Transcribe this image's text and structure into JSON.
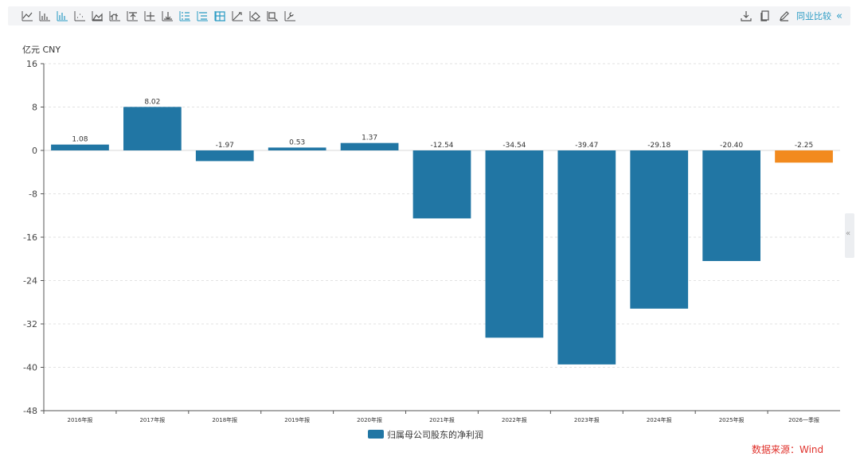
{
  "toolbar": {
    "left_icons": [
      "line-chart-icon",
      "bar-chart-icon",
      "grouped-bar-icon",
      "scatter-icon",
      "area-chart-icon",
      "bar-line-icon",
      "align-top-icon",
      "align-middle-icon",
      "align-bottom-icon",
      "list-icon",
      "list-indent-icon",
      "table-icon",
      "trend-line-icon",
      "fill-bucket-icon",
      "zoom-icon",
      "wrench-icon"
    ],
    "right_icons": [
      "download-icon",
      "copy-icon",
      "edit-icon"
    ],
    "compare_label": "同业比较",
    "collapse_glyph": "«"
  },
  "side_handle_glyph": "«",
  "source_text": "数据来源：Wind",
  "colors": {
    "primary": "#2176a4",
    "highlight": "#f28a1e",
    "accent": "#2a9bc4",
    "source": "#e0312b"
  },
  "chart_data": {
    "type": "bar",
    "ylabel": "亿元  CNY",
    "ylim": [
      -48,
      16
    ],
    "yticks": [
      16,
      8,
      0,
      -8,
      -16,
      -24,
      -32,
      -40,
      -48
    ],
    "categories": [
      "2016年报",
      "2017年报",
      "2018年报",
      "2019年报",
      "2020年报",
      "2021年报",
      "2022年报",
      "2023年报",
      "2024年报",
      "2025年报",
      "2026一季报"
    ],
    "series": [
      {
        "name": "归属母公司股东的净利润",
        "values": [
          1.08,
          8.02,
          -1.97,
          0.53,
          1.37,
          -12.54,
          -34.54,
          -39.47,
          -29.18,
          -20.4,
          -2.25
        ],
        "labels": [
          "1.08",
          "8.02",
          "-1.97",
          "0.53",
          "1.37",
          "-12.54",
          "-34.54",
          "-39.47",
          "-29.18",
          "-20.40",
          "-2.25"
        ]
      }
    ],
    "highlight_index": 10,
    "grid": true,
    "legend": "bottom-center"
  }
}
